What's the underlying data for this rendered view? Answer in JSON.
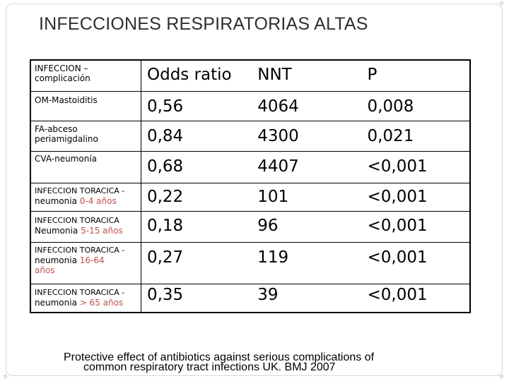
{
  "title": "INFECCIONES RESPIRATORIAS ALTAS",
  "table": {
    "headers": [
      "INFECCION – complicación",
      "Odds ratio",
      "NNT",
      "P"
    ],
    "rows": [
      {
        "label_a": "OM-Mastoiditis",
        "label_b": "",
        "label_b_accent": "",
        "label_c": "",
        "odds": "0,56",
        "nnt": "4064",
        "p": "0,008"
      },
      {
        "label_a": "FA-abceso periamigdalino",
        "label_b": "",
        "label_b_accent": "",
        "label_c": "",
        "odds": "0,84",
        "nnt": "4300",
        "p": "0,021"
      },
      {
        "label_a": "CVA-neumonía",
        "label_b": "",
        "label_b_accent": "",
        "label_c": "",
        "odds": "0,68",
        "nnt": "4407",
        "p": "<0,001"
      },
      {
        "label_a": "INFECCION TORACICA -",
        "label_b": "neumonia ",
        "label_b_accent": "0-4 años",
        "label_c": "",
        "odds": "0,22",
        "nnt": "101",
        "p": "<0,001"
      },
      {
        "label_a": "INFECCION TORACICA",
        "label_b": "Neumonia ",
        "label_b_accent": "5-15 años",
        "label_c": "",
        "odds": "0,18",
        "nnt": "96",
        "p": "<0,001"
      },
      {
        "label_a": "INFECCION TORACICA -",
        "label_b": "neumonia ",
        "label_b_accent": "16-64",
        "label_c": "años",
        "odds": "0,27",
        "nnt": "119",
        "p": "<0,001"
      },
      {
        "label_a": "INFECCION TORACICA -",
        "label_b": "neumonia ",
        "label_b_accent": "> 65 años",
        "label_c": "",
        "odds": "0,35",
        "nnt": "39",
        "p": "<0,001"
      }
    ]
  },
  "footer": {
    "line1": "Protective effect of antibiotics against serious complications of",
    "line2": "common respiratory tract infections UK. BMJ 2007"
  }
}
